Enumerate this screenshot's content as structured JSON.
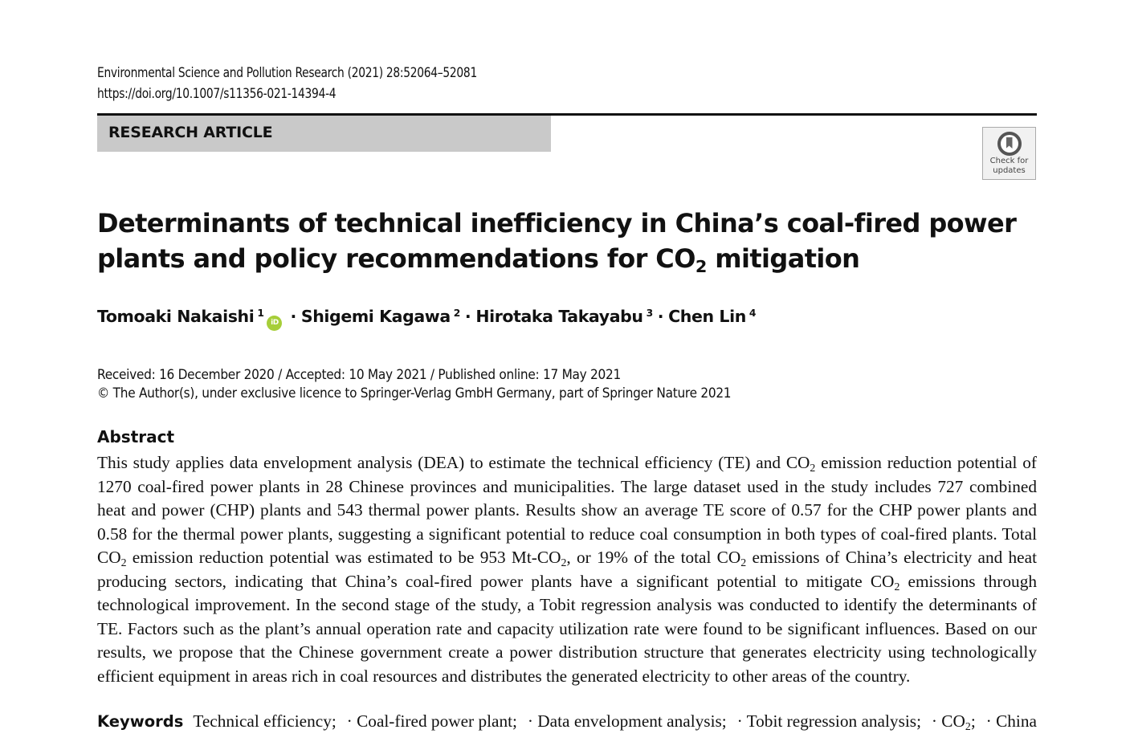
{
  "journal": {
    "citation": "Environmental Science and Pollution Research (2021) 28:52064–52081",
    "doi": "https://doi.org/10.1007/s11356-021-14394-4"
  },
  "article_type": "RESEARCH ARTICLE",
  "badge": {
    "icon": "check-for-updates-icon",
    "line1": "Check for",
    "line2": "updates"
  },
  "title": {
    "line1": "Determinants of technical inefficiency in China’s coal-fired power",
    "line2_pre": "plants and policy recommendations for CO",
    "line2_sub": "2",
    "line2_post": " mitigation"
  },
  "authors": [
    {
      "name": "Tomoaki Nakaishi",
      "aff": "1",
      "orcid": true
    },
    {
      "name": "Shigemi Kagawa",
      "aff": "2"
    },
    {
      "name": "Hirotaka Takayabu",
      "aff": "3"
    },
    {
      "name": "Chen Lin",
      "aff": "4"
    }
  ],
  "orcid_label": "iD",
  "separator": "·",
  "dates": "Received: 16 December 2020 / Accepted: 10 May 2021 / Published online: 17 May 2021",
  "copyright": "© The Author(s), under exclusive licence to Springer-Verlag GmbH Germany, part of Springer Nature 2021",
  "abstract": {
    "heading": "Abstract",
    "lines": [
      [
        {
          "t": "This study applies data envelopment analysis (DEA) to estimate the technical efficiency (TE) and CO"
        },
        {
          "t": "2",
          "sub": true
        },
        {
          "t": " emission reduction potential of"
        }
      ],
      [
        {
          "t": "1270 coal-fired power plants in 28 Chinese provinces and municipalities. The large dataset used in the study includes 727 combined"
        }
      ],
      [
        {
          "t": "heat and power (CHP) plants and 543 thermal power plants. Results show an average TE score of 0.57 for the CHP power plants and"
        }
      ],
      [
        {
          "t": "0.58 for the thermal power plants, suggesting a significant potential to reduce coal consumption in both types of coal-fired plants. Total"
        }
      ],
      [
        {
          "t": "CO"
        },
        {
          "t": "2",
          "sub": true
        },
        {
          "t": " emission reduction potential was estimated to be 953 Mt-CO"
        },
        {
          "t": "2",
          "sub": true
        },
        {
          "t": ", or 19% of the total CO"
        },
        {
          "t": "2",
          "sub": true
        },
        {
          "t": " emissions of China’s electricity and heat"
        }
      ],
      [
        {
          "t": "producing sectors, indicating that China’s coal-fired power plants have a significant potential to mitigate CO"
        },
        {
          "t": "2",
          "sub": true
        },
        {
          "t": " emissions through"
        }
      ],
      [
        {
          "t": "technological improvement. In the second stage of the study, a Tobit regression analysis was conducted to identify the determinants of"
        }
      ],
      [
        {
          "t": "TE. Factors such as the plant’s annual operation rate and capacity utilization rate were found to be significant influences. Based on our"
        }
      ],
      [
        {
          "t": "results, we propose that the Chinese government create a power distribution structure that generates electricity using technologically"
        }
      ],
      [
        {
          "t": "efficient equipment in areas rich in coal resources and distributes the generated electricity to other areas of the country."
        }
      ]
    ]
  },
  "keywords": {
    "label": "Keywords",
    "items": [
      [
        {
          "t": "Technical efficiency;"
        }
      ],
      [
        {
          "t": "· Coal-fired power plant;"
        }
      ],
      [
        {
          "t": "· Data envelopment analysis;"
        }
      ],
      [
        {
          "t": "· Tobit regression analysis;"
        }
      ],
      [
        {
          "t": "· CO"
        },
        {
          "t": "2",
          "sub": true
        },
        {
          "t": ";"
        }
      ],
      [
        {
          "t": "· China"
        }
      ]
    ]
  }
}
